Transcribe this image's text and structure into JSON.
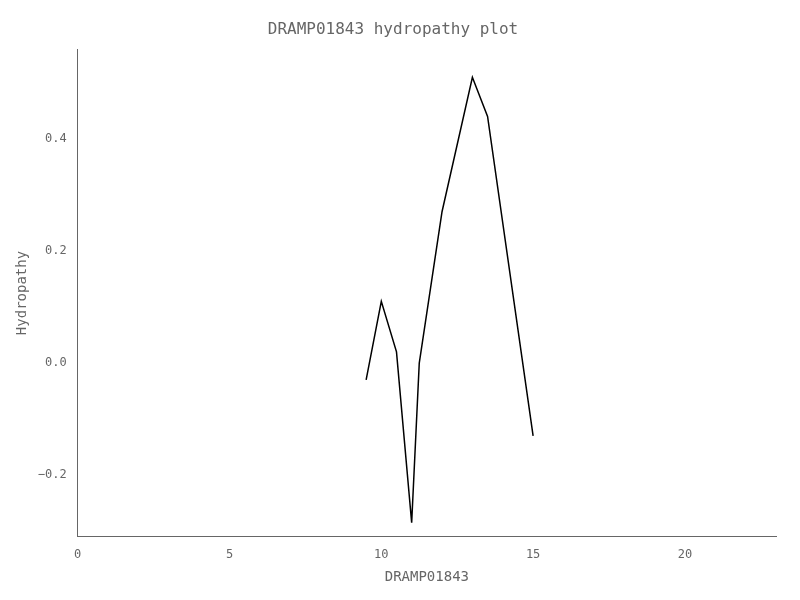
{
  "chart_data": {
    "type": "line",
    "title": "DRAMP01843 hydropathy plot",
    "xlabel": "DRAMP01843",
    "ylabel": "Hydropathy",
    "x": [
      9.5,
      10.0,
      10.5,
      11.0,
      11.25,
      12.0,
      13.0,
      13.5,
      15.0
    ],
    "values": [
      -0.03,
      0.11,
      0.02,
      -0.285,
      0.0,
      0.27,
      0.51,
      0.44,
      -0.13
    ],
    "color": "#000000",
    "xlim": [
      0,
      23
    ],
    "xticks": [
      0,
      5,
      10,
      15,
      20
    ],
    "ylim": [
      -0.31,
      0.56
    ],
    "yticks": [
      {
        "value": -0.2,
        "label": "−0.2"
      },
      {
        "value": 0.0,
        "label": "0.0"
      },
      0.2,
      0.4
    ],
    "grid": false
  }
}
